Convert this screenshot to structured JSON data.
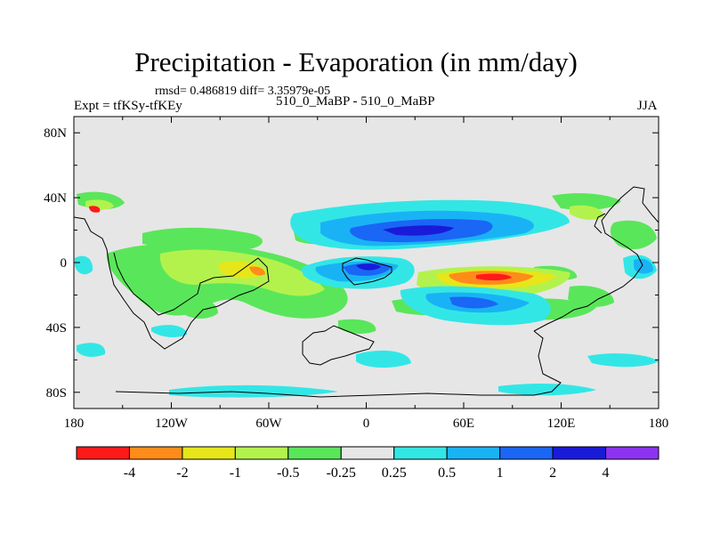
{
  "title": "Precipitation - Evaporation (in mm/day)",
  "subtitle": {
    "stats": "rmsd= 0.486819 diff= 3.35979e-05",
    "left": "Expt = tfKSy-tfKEy",
    "center": "510_0_MaBP - 510_0_MaBP",
    "right": "JJA"
  },
  "chart_data": {
    "type": "heatmap",
    "projection": "cylindrical-equidistant",
    "title": "Precipitation - Evaporation (in mm/day)",
    "x_range": [
      -180,
      180
    ],
    "y_range": [
      -90,
      90
    ],
    "x_ticks": [
      {
        "value": -180,
        "label": "180"
      },
      {
        "value": -120,
        "label": "120W"
      },
      {
        "value": -60,
        "label": "60W"
      },
      {
        "value": 0,
        "label": "0"
      },
      {
        "value": 60,
        "label": "60E"
      },
      {
        "value": 120,
        "label": "120E"
      },
      {
        "value": 180,
        "label": "180"
      }
    ],
    "y_ticks": [
      {
        "value": 80,
        "label": "80N"
      },
      {
        "value": 40,
        "label": "40N"
      },
      {
        "value": 0,
        "label": "0"
      },
      {
        "value": -40,
        "label": "40S"
      },
      {
        "value": -80,
        "label": "80S"
      }
    ],
    "colorbar": {
      "colors": [
        "#ff1a1a",
        "#ff8c1a",
        "#e6e61a",
        "#b3f24d",
        "#5ae65a",
        "#e6e6e6",
        "#33e6e6",
        "#19b3f5",
        "#1a66f5",
        "#1a1ad9",
        "#8c33f2"
      ],
      "labels": [
        "-4",
        "-2",
        "-1",
        "-0.5",
        "-0.25",
        "0.25",
        "0.5",
        "1",
        "2",
        "4"
      ]
    },
    "features": [
      {
        "name": "SE Pacific/Atlantic equatorial evaporation band",
        "lon": -72,
        "lat": -6,
        "value_range": [
          -2,
          -0.25
        ]
      },
      {
        "name": "South Indian Ocean strong evaporation",
        "lon": 70,
        "lat": -10,
        "value_range": [
          -4,
          -0.25
        ]
      },
      {
        "name": "North Atlantic to Asia precipitation band",
        "lon": 30,
        "lat": 22,
        "value_range": [
          0.25,
          4
        ]
      },
      {
        "name": "West Atlantic equatorial precipitation",
        "lon": 15,
        "lat": -3,
        "value_range": [
          0.25,
          2
        ]
      },
      {
        "name": "Antarctic coastal precipitation",
        "lon": 0,
        "lat": -82,
        "value_range": [
          0.25,
          0.5
        ]
      }
    ]
  }
}
